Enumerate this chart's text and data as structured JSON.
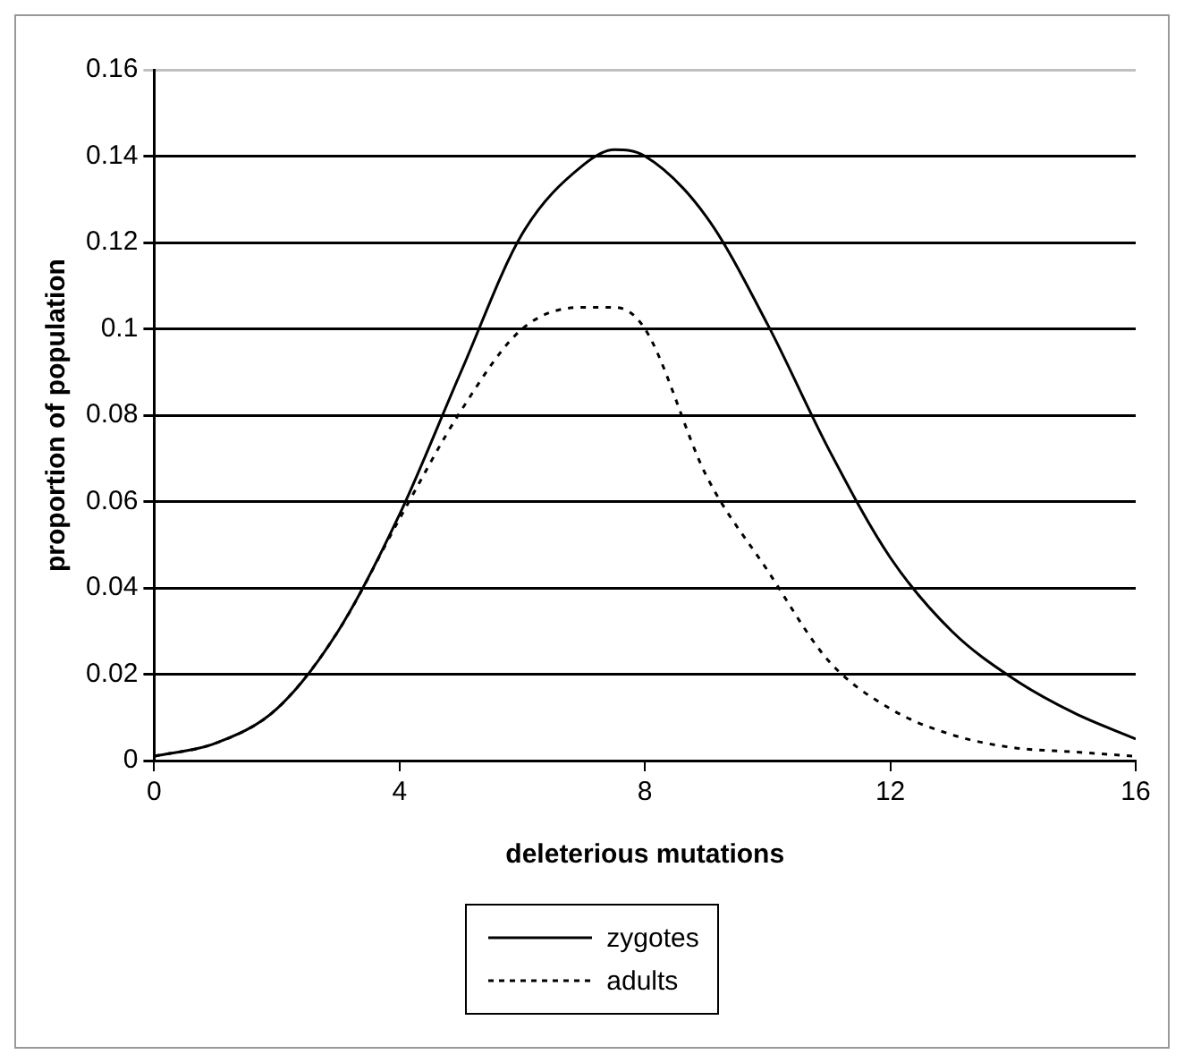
{
  "chart_data": {
    "type": "line",
    "xlabel": "deleterious mutations",
    "ylabel": "proportion of population",
    "x": [
      0,
      1,
      2,
      3,
      4,
      5,
      6,
      7,
      7.5,
      8,
      9,
      10,
      11,
      12,
      13,
      14,
      15,
      16
    ],
    "series": [
      {
        "name": "zygotes",
        "color": "#000000",
        "line_style": "solid",
        "values": [
          0.001,
          0.004,
          0.012,
          0.03,
          0.057,
          0.09,
          0.122,
          0.138,
          0.1415,
          0.14,
          0.126,
          0.101,
          0.072,
          0.047,
          0.03,
          0.019,
          0.011,
          0.005
        ]
      },
      {
        "name": "adults",
        "color": "#000000",
        "line_style": "dotted",
        "values": [
          0.001,
          0.004,
          0.012,
          0.03,
          0.056,
          0.081,
          0.1,
          0.105,
          0.105,
          0.1,
          0.066,
          0.044,
          0.023,
          0.012,
          0.006,
          0.003,
          0.002,
          0.001
        ]
      }
    ],
    "xlim": [
      0,
      16
    ],
    "xticks": [
      0,
      4,
      8,
      12,
      16
    ],
    "ylim": [
      0,
      0.16
    ],
    "yticks": [
      0,
      0.02,
      0.04,
      0.06,
      0.08,
      0.1,
      0.12,
      0.14,
      0.16
    ],
    "grid": "y",
    "legend": "bottom",
    "marker": "none"
  }
}
